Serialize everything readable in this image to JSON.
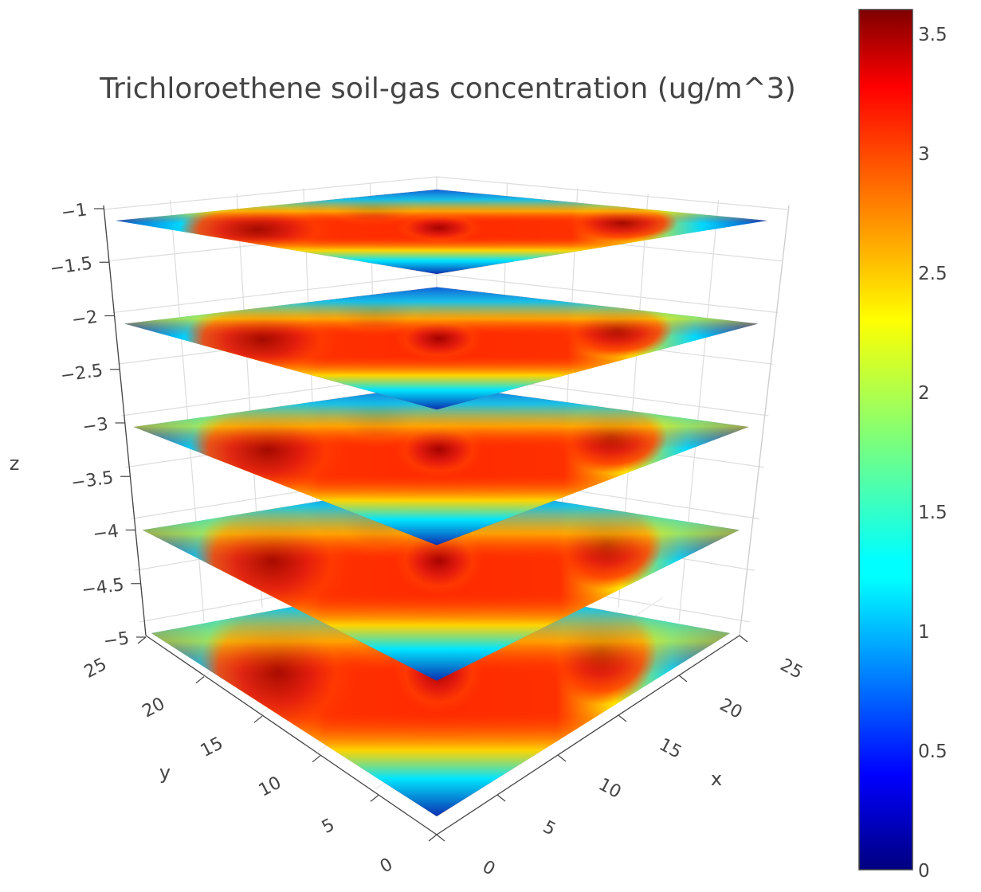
{
  "chart_data": {
    "type": "heatmap",
    "subtype": "3d-stacked-slices",
    "title": "Trichloroethene soil-gas concentration (ug/m^3)",
    "xlabel": "x",
    "ylabel": "y",
    "zlabel": "z",
    "x_ticks": [
      "0",
      "5",
      "10",
      "15",
      "20",
      "25"
    ],
    "y_ticks": [
      "0",
      "5",
      "10",
      "15",
      "20",
      "25"
    ],
    "z_ticks": [
      "−1",
      "−1.5",
      "−2",
      "−2.5",
      "−3",
      "−3.5",
      "−4",
      "−4.5",
      "−5"
    ],
    "xlim": [
      0,
      25
    ],
    "ylim": [
      0,
      25
    ],
    "zlim": [
      -5,
      -1
    ],
    "slice_depths": [
      -1,
      -2,
      -3,
      -4,
      -5
    ],
    "colorbar": {
      "ticks": [
        "3.5",
        "3",
        "2.5",
        "2",
        "1.5",
        "1",
        "0.5",
        "0"
      ],
      "range": [
        0,
        3.6
      ],
      "colorscale": "jet"
    }
  }
}
